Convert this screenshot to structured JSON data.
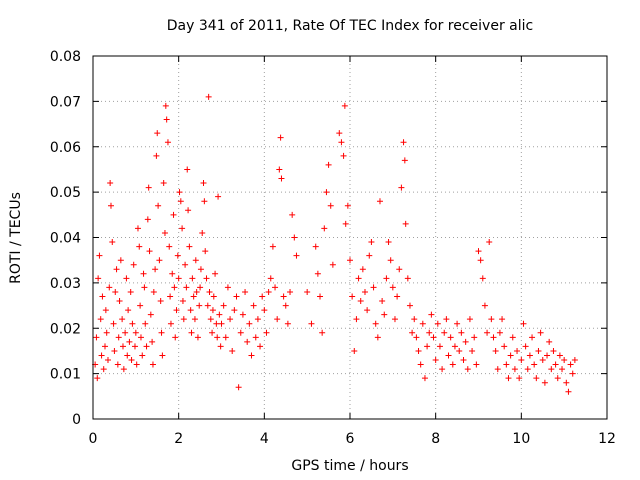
{
  "chart_data": {
    "type": "scatter",
    "title": "Day 341 of 2011, Rate Of TEC Index for receiver alic",
    "xlabel": "GPS time / hours",
    "ylabel": "ROTI / TECUs",
    "xlim": [
      0,
      12
    ],
    "ylim": [
      0,
      0.08
    ],
    "xticks": [
      "0",
      "2",
      "4",
      "6",
      "8",
      "10",
      "12"
    ],
    "yticks": [
      "0",
      "0.01",
      "0.02",
      "0.03",
      "0.04",
      "0.05",
      "0.06",
      "0.07",
      "0.08"
    ],
    "grid": true,
    "marker": "+",
    "color": "#ff0000",
    "series": [
      {
        "points": [
          [
            0.05,
            0.012
          ],
          [
            0.08,
            0.018
          ],
          [
            0.1,
            0.009
          ],
          [
            0.12,
            0.031
          ],
          [
            0.15,
            0.036
          ],
          [
            0.18,
            0.022
          ],
          [
            0.2,
            0.014
          ],
          [
            0.22,
            0.027
          ],
          [
            0.25,
            0.011
          ],
          [
            0.28,
            0.016
          ],
          [
            0.3,
            0.024
          ],
          [
            0.32,
            0.019
          ],
          [
            0.35,
            0.013
          ],
          [
            0.38,
            0.029
          ],
          [
            0.4,
            0.052
          ],
          [
            0.42,
            0.047
          ],
          [
            0.45,
            0.039
          ],
          [
            0.48,
            0.021
          ],
          [
            0.5,
            0.015
          ],
          [
            0.52,
            0.028
          ],
          [
            0.55,
            0.033
          ],
          [
            0.58,
            0.012
          ],
          [
            0.6,
            0.018
          ],
          [
            0.62,
            0.026
          ],
          [
            0.65,
            0.035
          ],
          [
            0.68,
            0.022
          ],
          [
            0.7,
            0.016
          ],
          [
            0.72,
            0.011
          ],
          [
            0.75,
            0.019
          ],
          [
            0.78,
            0.031
          ],
          [
            0.8,
            0.014
          ],
          [
            0.82,
            0.024
          ],
          [
            0.85,
            0.017
          ],
          [
            0.88,
            0.028
          ],
          [
            0.9,
            0.013
          ],
          [
            0.92,
            0.021
          ],
          [
            0.95,
            0.034
          ],
          [
            0.98,
            0.016
          ],
          [
            1.0,
            0.019
          ],
          [
            1.02,
            0.012
          ],
          [
            1.05,
            0.042
          ],
          [
            1.08,
            0.038
          ],
          [
            1.1,
            0.025
          ],
          [
            1.12,
            0.018
          ],
          [
            1.15,
            0.014
          ],
          [
            1.18,
            0.032
          ],
          [
            1.2,
            0.029
          ],
          [
            1.22,
            0.021
          ],
          [
            1.25,
            0.016
          ],
          [
            1.28,
            0.044
          ],
          [
            1.3,
            0.051
          ],
          [
            1.32,
            0.037
          ],
          [
            1.35,
            0.023
          ],
          [
            1.38,
            0.017
          ],
          [
            1.4,
            0.012
          ],
          [
            1.42,
            0.028
          ],
          [
            1.45,
            0.033
          ],
          [
            1.48,
            0.058
          ],
          [
            1.5,
            0.063
          ],
          [
            1.52,
            0.047
          ],
          [
            1.55,
            0.035
          ],
          [
            1.58,
            0.026
          ],
          [
            1.6,
            0.019
          ],
          [
            1.62,
            0.014
          ],
          [
            1.65,
            0.052
          ],
          [
            1.68,
            0.041
          ],
          [
            1.7,
            0.069
          ],
          [
            1.72,
            0.066
          ],
          [
            1.75,
            0.061
          ],
          [
            1.78,
            0.038
          ],
          [
            1.8,
            0.027
          ],
          [
            1.82,
            0.021
          ],
          [
            1.85,
            0.032
          ],
          [
            1.88,
            0.045
          ],
          [
            1.9,
            0.029
          ],
          [
            1.92,
            0.018
          ],
          [
            1.95,
            0.024
          ],
          [
            1.98,
            0.036
          ],
          [
            2.0,
            0.031
          ],
          [
            2.02,
            0.05
          ],
          [
            2.05,
            0.048
          ],
          [
            2.08,
            0.042
          ],
          [
            2.1,
            0.026
          ],
          [
            2.12,
            0.022
          ],
          [
            2.15,
            0.034
          ],
          [
            2.18,
            0.029
          ],
          [
            2.2,
            0.055
          ],
          [
            2.22,
            0.046
          ],
          [
            2.25,
            0.038
          ],
          [
            2.28,
            0.024
          ],
          [
            2.3,
            0.019
          ],
          [
            2.32,
            0.031
          ],
          [
            2.35,
            0.027
          ],
          [
            2.38,
            0.022
          ],
          [
            2.4,
            0.035
          ],
          [
            2.42,
            0.028
          ],
          [
            2.45,
            0.018
          ],
          [
            2.48,
            0.025
          ],
          [
            2.5,
            0.029
          ],
          [
            2.52,
            0.033
          ],
          [
            2.55,
            0.041
          ],
          [
            2.58,
            0.052
          ],
          [
            2.6,
            0.048
          ],
          [
            2.62,
            0.037
          ],
          [
            2.65,
            0.031
          ],
          [
            2.68,
            0.025
          ],
          [
            2.7,
            0.071
          ],
          [
            2.72,
            0.028
          ],
          [
            2.75,
            0.022
          ],
          [
            2.78,
            0.019
          ],
          [
            2.8,
            0.024
          ],
          [
            2.82,
            0.027
          ],
          [
            2.85,
            0.032
          ],
          [
            2.88,
            0.021
          ],
          [
            2.9,
            0.018
          ],
          [
            2.92,
            0.049
          ],
          [
            2.95,
            0.023
          ],
          [
            2.98,
            0.016
          ],
          [
            3.0,
            0.021
          ],
          [
            3.05,
            0.025
          ],
          [
            3.1,
            0.018
          ],
          [
            3.15,
            0.029
          ],
          [
            3.2,
            0.022
          ],
          [
            3.25,
            0.015
          ],
          [
            3.3,
            0.024
          ],
          [
            3.35,
            0.027
          ],
          [
            3.4,
            0.007
          ],
          [
            3.45,
            0.019
          ],
          [
            3.5,
            0.023
          ],
          [
            3.55,
            0.028
          ],
          [
            3.6,
            0.017
          ],
          [
            3.65,
            0.021
          ],
          [
            3.7,
            0.014
          ],
          [
            3.75,
            0.025
          ],
          [
            3.8,
            0.018
          ],
          [
            3.85,
            0.022
          ],
          [
            3.9,
            0.016
          ],
          [
            3.95,
            0.027
          ],
          [
            4.0,
            0.024
          ],
          [
            4.05,
            0.019
          ],
          [
            4.1,
            0.028
          ],
          [
            4.15,
            0.031
          ],
          [
            4.2,
            0.038
          ],
          [
            4.25,
            0.029
          ],
          [
            4.3,
            0.022
          ],
          [
            4.35,
            0.055
          ],
          [
            4.38,
            0.062
          ],
          [
            4.4,
            0.053
          ],
          [
            4.45,
            0.027
          ],
          [
            4.5,
            0.025
          ],
          [
            4.55,
            0.021
          ],
          [
            4.6,
            0.028
          ],
          [
            4.65,
            0.045
          ],
          [
            4.7,
            0.04
          ],
          [
            4.75,
            0.036
          ],
          [
            5.0,
            0.028
          ],
          [
            5.1,
            0.021
          ],
          [
            5.2,
            0.038
          ],
          [
            5.25,
            0.032
          ],
          [
            5.3,
            0.027
          ],
          [
            5.35,
            0.019
          ],
          [
            5.4,
            0.042
          ],
          [
            5.45,
            0.05
          ],
          [
            5.5,
            0.056
          ],
          [
            5.55,
            0.047
          ],
          [
            5.6,
            0.034
          ],
          [
            5.75,
            0.063
          ],
          [
            5.8,
            0.061
          ],
          [
            5.85,
            0.058
          ],
          [
            5.88,
            0.069
          ],
          [
            5.9,
            0.043
          ],
          [
            5.95,
            0.047
          ],
          [
            6.0,
            0.035
          ],
          [
            6.05,
            0.027
          ],
          [
            6.1,
            0.015
          ],
          [
            6.15,
            0.022
          ],
          [
            6.2,
            0.031
          ],
          [
            6.25,
            0.026
          ],
          [
            6.3,
            0.033
          ],
          [
            6.35,
            0.028
          ],
          [
            6.4,
            0.024
          ],
          [
            6.45,
            0.036
          ],
          [
            6.5,
            0.039
          ],
          [
            6.55,
            0.029
          ],
          [
            6.6,
            0.021
          ],
          [
            6.65,
            0.018
          ],
          [
            6.7,
            0.048
          ],
          [
            6.75,
            0.026
          ],
          [
            6.8,
            0.023
          ],
          [
            6.85,
            0.031
          ],
          [
            6.9,
            0.039
          ],
          [
            6.95,
            0.035
          ],
          [
            7.0,
            0.029
          ],
          [
            7.05,
            0.022
          ],
          [
            7.1,
            0.027
          ],
          [
            7.15,
            0.033
          ],
          [
            7.2,
            0.051
          ],
          [
            7.25,
            0.061
          ],
          [
            7.28,
            0.057
          ],
          [
            7.3,
            0.043
          ],
          [
            7.35,
            0.031
          ],
          [
            7.4,
            0.025
          ],
          [
            7.45,
            0.019
          ],
          [
            7.5,
            0.022
          ],
          [
            7.55,
            0.018
          ],
          [
            7.6,
            0.015
          ],
          [
            7.65,
            0.012
          ],
          [
            7.7,
            0.021
          ],
          [
            7.75,
            0.009
          ],
          [
            7.8,
            0.016
          ],
          [
            7.85,
            0.019
          ],
          [
            7.9,
            0.023
          ],
          [
            7.95,
            0.018
          ],
          [
            8.0,
            0.013
          ],
          [
            8.05,
            0.021
          ],
          [
            8.1,
            0.016
          ],
          [
            8.15,
            0.011
          ],
          [
            8.2,
            0.019
          ],
          [
            8.25,
            0.022
          ],
          [
            8.3,
            0.014
          ],
          [
            8.35,
            0.018
          ],
          [
            8.4,
            0.012
          ],
          [
            8.45,
            0.016
          ],
          [
            8.5,
            0.021
          ],
          [
            8.55,
            0.015
          ],
          [
            8.6,
            0.019
          ],
          [
            8.65,
            0.013
          ],
          [
            8.7,
            0.017
          ],
          [
            8.75,
            0.011
          ],
          [
            8.8,
            0.022
          ],
          [
            8.85,
            0.015
          ],
          [
            8.9,
            0.018
          ],
          [
            8.95,
            0.012
          ],
          [
            9.0,
            0.037
          ],
          [
            9.05,
            0.035
          ],
          [
            9.1,
            0.031
          ],
          [
            9.15,
            0.025
          ],
          [
            9.2,
            0.019
          ],
          [
            9.25,
            0.039
          ],
          [
            9.3,
            0.022
          ],
          [
            9.35,
            0.018
          ],
          [
            9.4,
            0.015
          ],
          [
            9.45,
            0.011
          ],
          [
            9.5,
            0.019
          ],
          [
            9.55,
            0.022
          ],
          [
            9.6,
            0.016
          ],
          [
            9.65,
            0.012
          ],
          [
            9.7,
            0.009
          ],
          [
            9.75,
            0.014
          ],
          [
            9.8,
            0.018
          ],
          [
            9.85,
            0.011
          ],
          [
            9.9,
            0.015
          ],
          [
            9.95,
            0.009
          ],
          [
            10.0,
            0.013
          ],
          [
            10.05,
            0.021
          ],
          [
            10.1,
            0.016
          ],
          [
            10.15,
            0.011
          ],
          [
            10.2,
            0.014
          ],
          [
            10.25,
            0.018
          ],
          [
            10.3,
            0.012
          ],
          [
            10.35,
            0.009
          ],
          [
            10.4,
            0.015
          ],
          [
            10.45,
            0.019
          ],
          [
            10.5,
            0.013
          ],
          [
            10.55,
            0.008
          ],
          [
            10.6,
            0.014
          ],
          [
            10.65,
            0.017
          ],
          [
            10.7,
            0.011
          ],
          [
            10.75,
            0.015
          ],
          [
            10.8,
            0.012
          ],
          [
            10.85,
            0.009
          ],
          [
            10.9,
            0.014
          ],
          [
            10.95,
            0.011
          ],
          [
            11.0,
            0.013
          ],
          [
            11.05,
            0.008
          ],
          [
            11.1,
            0.006
          ],
          [
            11.15,
            0.012
          ],
          [
            11.2,
            0.01
          ],
          [
            11.25,
            0.013
          ]
        ]
      }
    ]
  }
}
